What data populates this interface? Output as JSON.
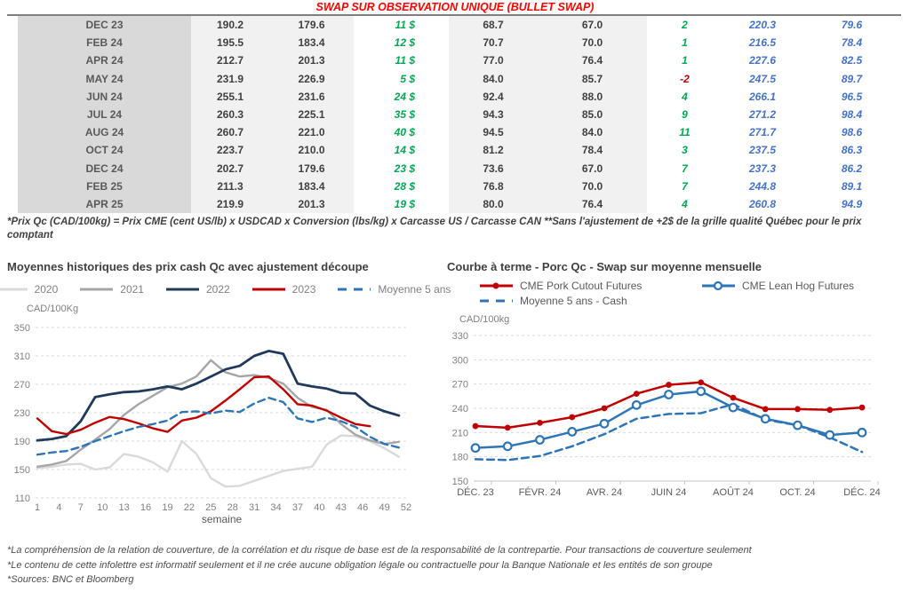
{
  "header": {
    "title": "SWAP SUR OBSERVATION UNIQUE (BULLET SWAP)"
  },
  "swap_table": {
    "rows": [
      [
        "DEC 23",
        "190.2",
        "179.6",
        "11 $",
        "68.7",
        "67.0",
        "2",
        "220.3",
        "79.6"
      ],
      [
        "FEB 24",
        "195.5",
        "183.4",
        "12 $",
        "70.7",
        "70.0",
        "1",
        "216.5",
        "78.4"
      ],
      [
        "APR 24",
        "212.7",
        "201.3",
        "11 $",
        "77.0",
        "76.4",
        "1",
        "227.6",
        "82.5"
      ],
      [
        "MAY 24",
        "231.9",
        "226.9",
        "5 $",
        "84.0",
        "85.7",
        "-2",
        "247.5",
        "89.7"
      ],
      [
        "JUN 24",
        "255.1",
        "231.6",
        "24 $",
        "92.4",
        "88.0",
        "4",
        "266.1",
        "96.5"
      ],
      [
        "JUL 24",
        "260.3",
        "225.1",
        "35 $",
        "94.3",
        "85.0",
        "9",
        "271.2",
        "98.4"
      ],
      [
        "AUG 24",
        "260.7",
        "221.0",
        "40 $",
        "94.5",
        "84.0",
        "11",
        "271.7",
        "98.6"
      ],
      [
        "OCT 24",
        "223.7",
        "210.0",
        "14 $",
        "81.2",
        "78.4",
        "3",
        "237.5",
        "86.3"
      ],
      [
        "DEC 24",
        "202.7",
        "179.6",
        "23 $",
        "73.6",
        "67.0",
        "7",
        "237.3",
        "86.2"
      ],
      [
        "FEB 25",
        "211.3",
        "183.4",
        "28 $",
        "76.8",
        "70.0",
        "7",
        "244.8",
        "89.1"
      ],
      [
        "APR 25",
        "219.9",
        "201.3",
        "19 $",
        "80.0",
        "76.4",
        "4",
        "260.8",
        "94.9"
      ]
    ]
  },
  "notes": {
    "table_note": "*Prix Qc (CAD/100kg) = Prix CME (cent US/lb) x USDCAD x Conversion (lbs/kg) x Carcasse US / Carcasse CAN **Sans l'ajustement de +2$ de la grille qualité Québec pour le prix comptant",
    "footer": [
      "*La compréhension de la relation de couverture, de la corrélation et du risque de base est de la responsabilité de la contrepartie. Pour transactions de couverture seulement",
      "*Le contenu de cette infolettre est informatif seulement et il ne crée aucune obligation légale ou contractuelle pour la Banque Nationale et les entités de son groupe",
      "*Sources: BNC et Bloomberg"
    ]
  },
  "colors": {
    "title_red": "#ff0000",
    "table_green": "#00a651",
    "table_neg_red": "#c00000",
    "table_blue": "#4472c4"
  },
  "chart_data": [
    {
      "type": "line",
      "title": "Moyennes historiques des prix cash Qc avec ajustement découpe",
      "ylabel": "CAD/100Kg",
      "xlabel": "semaine",
      "ylim": [
        110,
        350
      ],
      "yticks": [
        350,
        310,
        270,
        230,
        190,
        150,
        110
      ],
      "xticks": [
        1,
        4,
        7,
        10,
        13,
        16,
        19,
        22,
        25,
        28,
        31,
        34,
        37,
        40,
        43,
        46,
        49,
        52
      ],
      "grid": "dashed",
      "legend_position": "top",
      "x": [
        1,
        3,
        5,
        7,
        9,
        11,
        13,
        15,
        17,
        19,
        21,
        23,
        25,
        27,
        29,
        31,
        33,
        35,
        37,
        39,
        41,
        43,
        45,
        47,
        49,
        51
      ],
      "series": [
        {
          "name": "2020",
          "color": "#d9d9d9",
          "style": "solid",
          "marker": "none",
          "values": [
            152,
            154,
            157,
            158,
            150,
            153,
            172,
            168,
            160,
            147,
            190,
            172,
            138,
            126,
            127,
            134,
            141,
            148,
            151,
            154,
            185,
            198,
            197,
            190,
            180,
            168
          ]
        },
        {
          "name": "2021",
          "color": "#a6a6a6",
          "style": "solid",
          "marker": "none",
          "values": [
            154,
            157,
            162,
            178,
            192,
            207,
            227,
            242,
            254,
            266,
            271,
            281,
            304,
            287,
            281,
            283,
            279,
            271,
            251,
            238,
            234,
            214,
            199,
            191,
            186,
            189
          ]
        },
        {
          "name": "2022",
          "color": "#1f3a5a",
          "style": "solid",
          "marker": "none",
          "values": [
            191,
            193,
            197,
            218,
            252,
            256,
            259,
            260,
            263,
            267,
            263,
            271,
            281,
            291,
            296,
            310,
            317,
            313,
            271,
            267,
            264,
            258,
            257,
            240,
            232,
            226
          ]
        },
        {
          "name": "2023",
          "color": "#c00000",
          "style": "solid",
          "marker": "none",
          "values": [
            222,
            204,
            200,
            206,
            216,
            224,
            221,
            215,
            208,
            203,
            219,
            223,
            232,
            247,
            263,
            280,
            281,
            263,
            242,
            240,
            233,
            223,
            214,
            211,
            null,
            null
          ]
        },
        {
          "name": "Moyenne 5 ans",
          "color": "#2e75b6",
          "style": "dashed",
          "marker": "none",
          "values": [
            171,
            174,
            176,
            182,
            190,
            197,
            204,
            210,
            214,
            219,
            231,
            232,
            229,
            233,
            231,
            243,
            251,
            245,
            222,
            217,
            223,
            218,
            210,
            196,
            186,
            181
          ]
        }
      ]
    },
    {
      "type": "line",
      "title": "Courbe à terme - Porc Qc - Swap sur moyenne mensuelle",
      "ylabel": "CAD/100kg",
      "xlabel": "",
      "ylim": [
        150,
        330
      ],
      "yticks": [
        330,
        300,
        270,
        240,
        210,
        180,
        150
      ],
      "grid": "dashed",
      "legend_position": "top",
      "x_count": 13,
      "xtick_indices": [
        0,
        2,
        4,
        6,
        8,
        10,
        12
      ],
      "xtick_labels": [
        "DÉC. 23",
        "FÉVR. 24",
        "AVR. 24",
        "JUIN 24",
        "AOÛT 24",
        "OCT. 24",
        "DÉC. 24"
      ],
      "series": [
        {
          "name": "CME Pork Cutout Futures",
          "color": "#c00000",
          "style": "solid",
          "marker": "filled",
          "values": [
            218,
            216,
            222,
            229,
            240,
            258,
            269,
            272,
            253,
            239,
            239,
            238,
            241
          ]
        },
        {
          "name": "CME Lean Hog Futures",
          "color": "#2e75b6",
          "style": "solid",
          "marker": "open",
          "values": [
            191,
            193,
            201,
            211,
            221,
            244,
            257,
            261,
            241,
            227,
            219,
            207,
            210
          ]
        },
        {
          "name": "Moyenne 5 ans - Cash",
          "color": "#2e75b6",
          "style": "dashed",
          "marker": "none",
          "values": [
            177,
            176,
            181,
            193,
            208,
            227,
            233,
            234,
            245,
            226,
            219,
            204,
            186
          ]
        }
      ]
    }
  ]
}
